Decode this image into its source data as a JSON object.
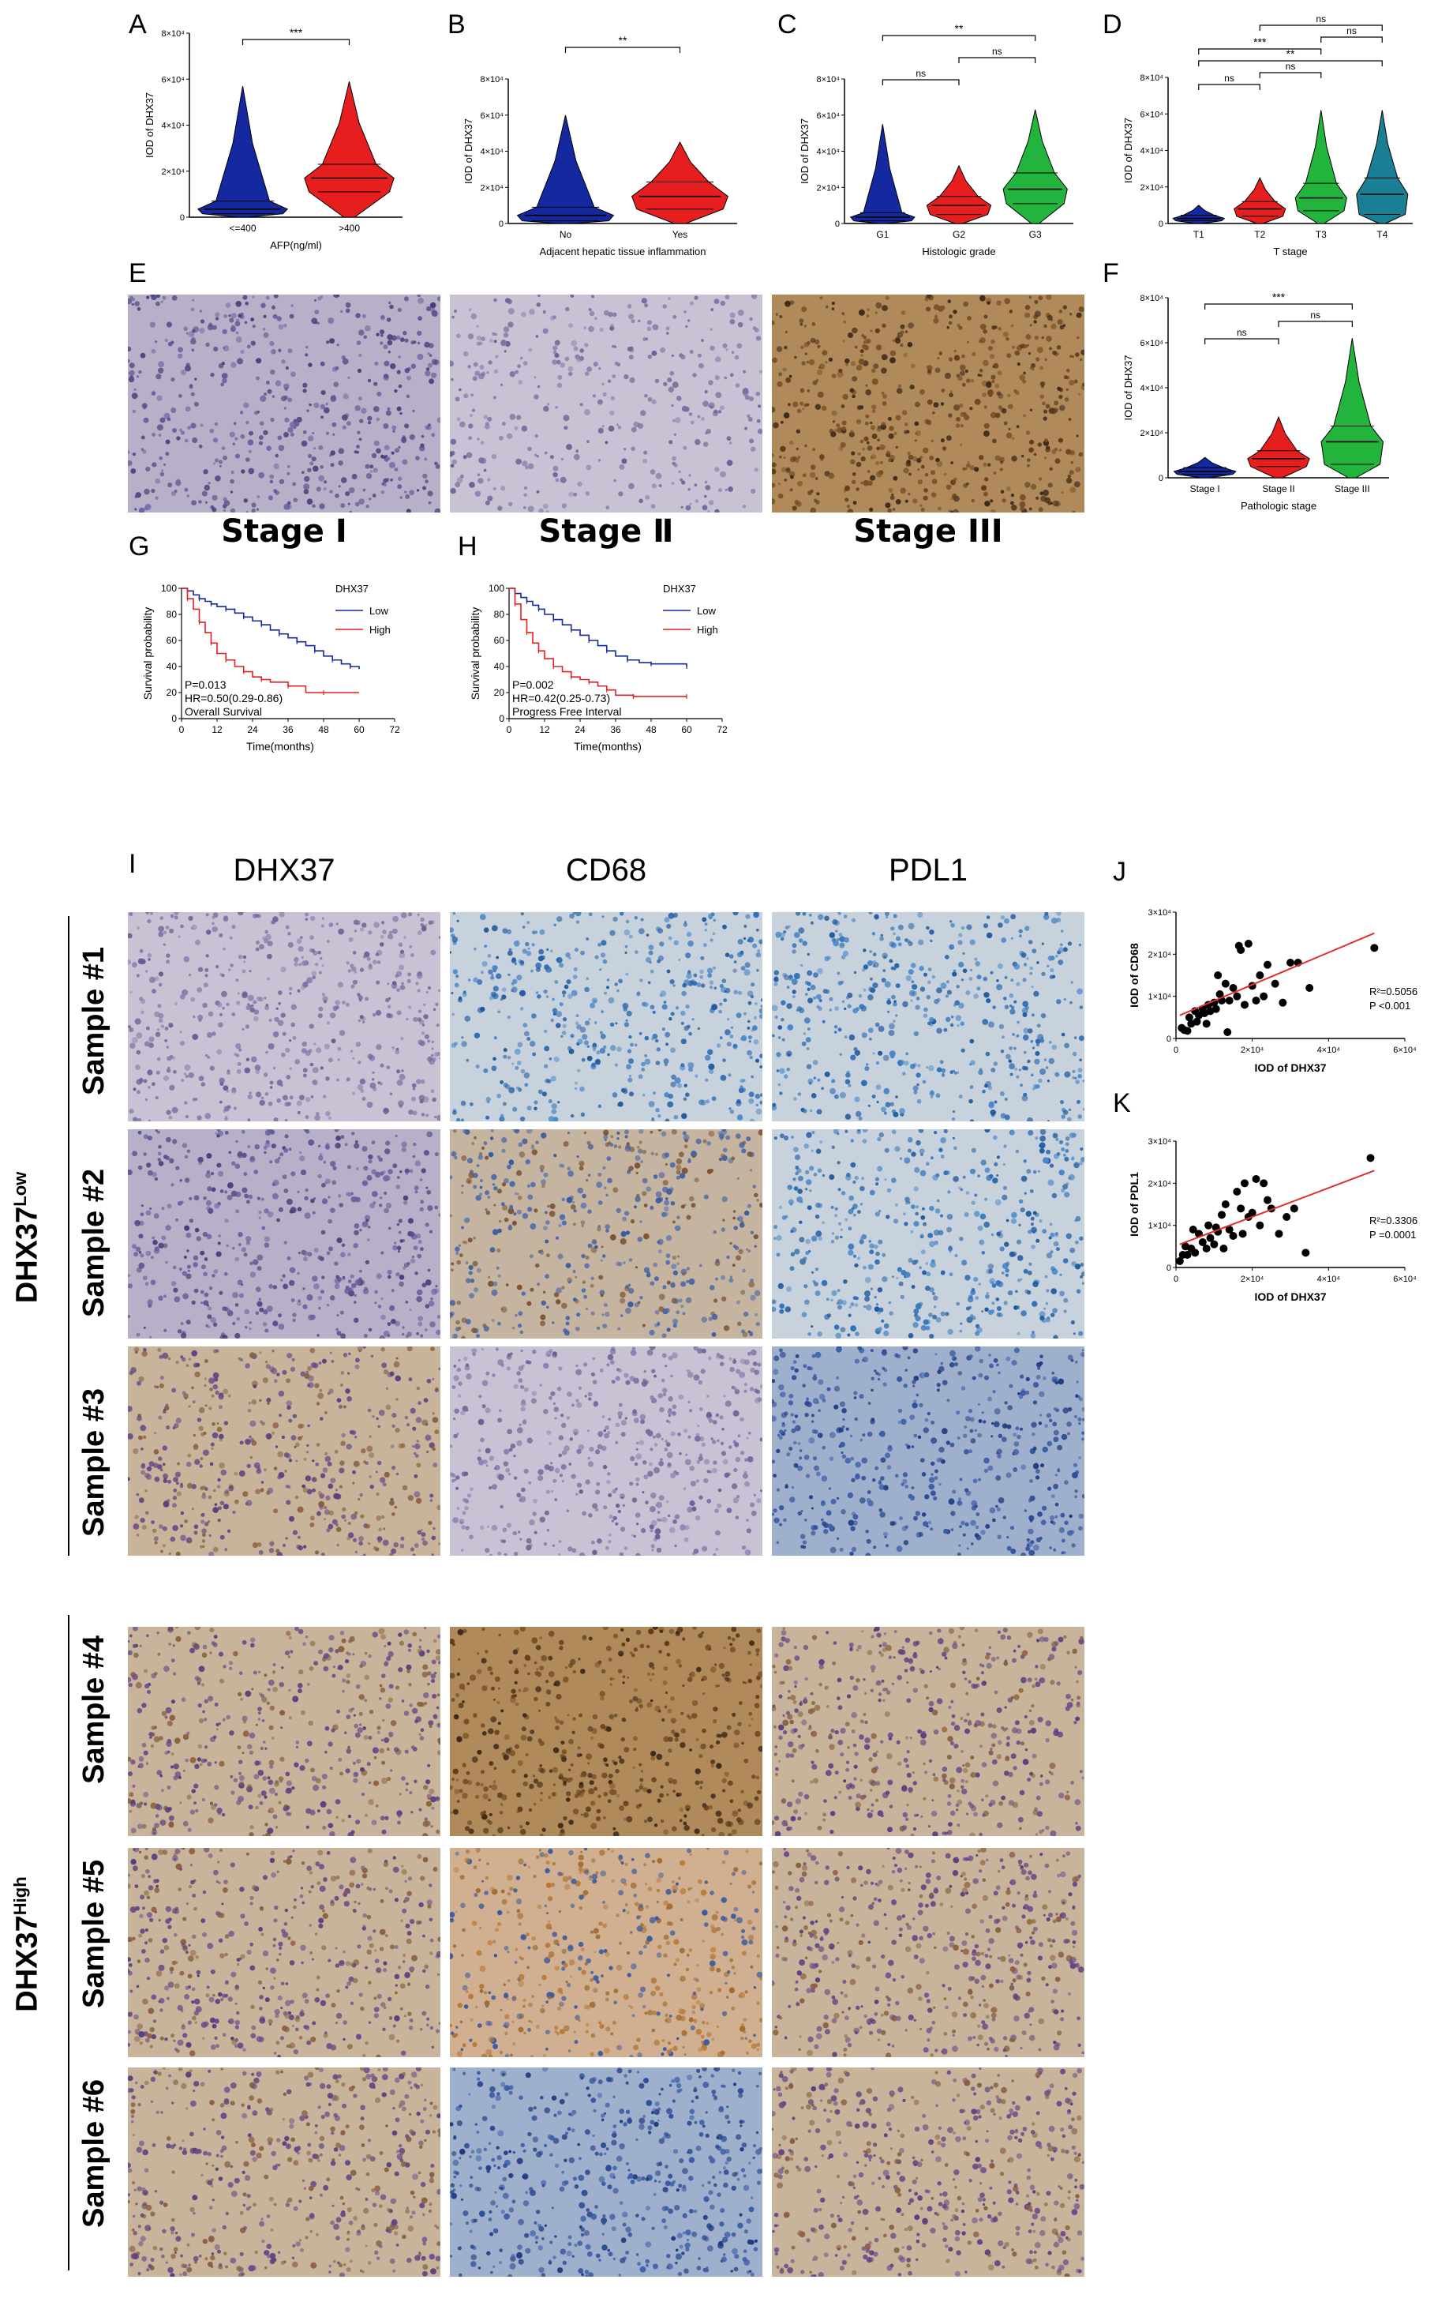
{
  "panels": {
    "A": "A",
    "B": "B",
    "C": "C",
    "D": "D",
    "E": "E",
    "F": "F",
    "G": "G",
    "H": "H",
    "I": "I",
    "J": "J",
    "K": "K"
  },
  "stage_labels": [
    "Stage Ⅰ",
    "Stage Ⅱ",
    "Stage III"
  ],
  "ihc_columns": [
    "DHX37",
    "CD68",
    "PDL1"
  ],
  "samples": [
    "Sample #1",
    "Sample #2",
    "Sample #3",
    "Sample #4",
    "Sample #5",
    "Sample #6"
  ],
  "group_low": {
    "base": "DHX37",
    "sup": "Low"
  },
  "group_high": {
    "base": "DHX37",
    "sup": "High"
  },
  "colors": {
    "blue": "#1428a0",
    "red": "#e61e1e",
    "green": "#22b43c",
    "teal": "#1a7f95",
    "line_red": "#e03030"
  },
  "chart_data": [
    {
      "id": "A",
      "type": "violin",
      "ylabel": "IOD of DHX37",
      "xlabel": "AFP(ng/ml)",
      "yticks": [
        "0",
        "2×10⁴",
        "4×10⁴",
        "6×10⁴",
        "8×10⁴"
      ],
      "ylim": [
        0,
        80000
      ],
      "categories": [
        "<=400",
        ">400"
      ],
      "groups": [
        {
          "name": "<=400",
          "color": "#1428a0",
          "min": 0,
          "q1": 1500,
          "median": 3500,
          "q3": 7000,
          "max": 57000
        },
        {
          "name": ">400",
          "color": "#e61e1e",
          "min": 0,
          "q1": 11000,
          "median": 17000,
          "q3": 23000,
          "max": 59000
        }
      ],
      "significance": [
        {
          "from": 0,
          "to": 1,
          "label": "***"
        }
      ]
    },
    {
      "id": "B",
      "type": "violin",
      "ylabel": "IOD of DHX37",
      "xlabel": "Adjacent hepatic tissue inflammation",
      "yticks": [
        "0",
        "2×10⁴",
        "4×10⁴",
        "6×10⁴",
        "8×10⁴"
      ],
      "ylim": [
        0,
        80000
      ],
      "categories": [
        "No",
        "Yes"
      ],
      "groups": [
        {
          "name": "No",
          "color": "#1428a0",
          "min": 0,
          "q1": 1500,
          "median": 4500,
          "q3": 9000,
          "max": 60000
        },
        {
          "name": "Yes",
          "color": "#e61e1e",
          "min": 0,
          "q1": 8000,
          "median": 15000,
          "q3": 23000,
          "max": 45000
        }
      ],
      "significance": [
        {
          "from": 0,
          "to": 1,
          "label": "**"
        }
      ]
    },
    {
      "id": "C",
      "type": "violin",
      "ylabel": "IOD of DHX37",
      "xlabel": "Histologic grade",
      "yticks": [
        "0",
        "2×10⁴",
        "4×10⁴",
        "6×10⁴",
        "8×10⁴"
      ],
      "ylim": [
        0,
        80000
      ],
      "categories": [
        "G1",
        "G2",
        "G3"
      ],
      "groups": [
        {
          "name": "G1",
          "color": "#1428a0",
          "min": 0,
          "q1": 1500,
          "median": 3500,
          "q3": 6000,
          "max": 55000
        },
        {
          "name": "G2",
          "color": "#e61e1e",
          "min": 0,
          "q1": 5000,
          "median": 10000,
          "q3": 15000,
          "max": 32000
        },
        {
          "name": "G3",
          "color": "#22b43c",
          "min": 0,
          "q1": 11000,
          "median": 19000,
          "q3": 28000,
          "max": 63000
        }
      ],
      "significance": [
        {
          "from": 0,
          "to": 1,
          "label": "ns"
        },
        {
          "from": 1,
          "to": 2,
          "label": "ns"
        },
        {
          "from": 0,
          "to": 2,
          "label": "**"
        }
      ]
    },
    {
      "id": "D",
      "type": "violin",
      "ylabel": "IOD of DHX37",
      "xlabel": "T stage",
      "yticks": [
        "0",
        "2×10⁴",
        "4×10⁴",
        "6×10⁴",
        "8×10⁴"
      ],
      "ylim": [
        0,
        80000
      ],
      "categories": [
        "T1",
        "T2",
        "T3",
        "T4"
      ],
      "groups": [
        {
          "name": "T1",
          "color": "#1428a0",
          "min": 0,
          "q1": 1500,
          "median": 2800,
          "q3": 4500,
          "max": 10000
        },
        {
          "name": "T2",
          "color": "#e61e1e",
          "min": 0,
          "q1": 4000,
          "median": 8000,
          "q3": 12000,
          "max": 25000
        },
        {
          "name": "T3",
          "color": "#22b43c",
          "min": 0,
          "q1": 7000,
          "median": 14000,
          "q3": 22000,
          "max": 62000
        },
        {
          "name": "T4",
          "color": "#1a7f95",
          "min": 0,
          "q1": 5000,
          "median": 16000,
          "q3": 25000,
          "max": 62000
        }
      ],
      "significance": [
        {
          "from": 0,
          "to": 1,
          "label": "ns"
        },
        {
          "from": 1,
          "to": 2,
          "label": "ns"
        },
        {
          "from": 0,
          "to": 3,
          "label": "**"
        },
        {
          "from": 0,
          "to": 2,
          "label": "***"
        },
        {
          "from": 2,
          "to": 3,
          "label": "ns"
        },
        {
          "from": 1,
          "to": 3,
          "label": "ns"
        }
      ]
    },
    {
      "id": "F",
      "type": "violin",
      "ylabel": "IOD of DHX37",
      "xlabel": "Pathologic stage",
      "yticks": [
        "0",
        "2×10⁴",
        "4×10⁴",
        "6×10⁴",
        "8×10⁴"
      ],
      "ylim": [
        0,
        80000
      ],
      "categories": [
        "Stage I",
        "Stage II",
        "Stage III"
      ],
      "groups": [
        {
          "name": "Stage I",
          "color": "#1428a0",
          "min": 0,
          "q1": 1500,
          "median": 2800,
          "q3": 4500,
          "max": 9000
        },
        {
          "name": "Stage II",
          "color": "#e61e1e",
          "min": 0,
          "q1": 5000,
          "median": 8500,
          "q3": 12000,
          "max": 27000
        },
        {
          "name": "Stage III",
          "color": "#22b43c",
          "min": 0,
          "q1": 6000,
          "median": 16000,
          "q3": 23000,
          "max": 62000
        }
      ],
      "significance": [
        {
          "from": 0,
          "to": 1,
          "label": "ns"
        },
        {
          "from": 1,
          "to": 2,
          "label": "ns"
        },
        {
          "from": 0,
          "to": 2,
          "label": "***"
        }
      ]
    },
    {
      "id": "G",
      "type": "line",
      "ylabel": "Survival probability",
      "xlabel": "Time(months)",
      "xticks": [
        0,
        12,
        24,
        36,
        48,
        60,
        72
      ],
      "yticks": [
        0,
        20,
        40,
        60,
        80,
        100
      ],
      "xlim": [
        0,
        72
      ],
      "ylim": [
        0,
        100
      ],
      "legend_title": "DHX37",
      "series": [
        {
          "name": "Low",
          "color": "#1428a0",
          "x": [
            0,
            2,
            4,
            6,
            8,
            10,
            12,
            15,
            18,
            21,
            24,
            27,
            30,
            33,
            36,
            39,
            42,
            45,
            48,
            51,
            54,
            57,
            60
          ],
          "y": [
            100,
            98,
            95,
            92,
            90,
            88,
            86,
            84,
            81,
            78,
            75,
            72,
            68,
            65,
            62,
            59,
            56,
            52,
            48,
            45,
            42,
            40,
            38
          ]
        },
        {
          "name": "High",
          "color": "#e61e1e",
          "x": [
            0,
            2,
            4,
            6,
            8,
            10,
            12,
            15,
            18,
            21,
            24,
            27,
            30,
            36,
            42,
            48,
            60
          ],
          "y": [
            100,
            92,
            84,
            74,
            66,
            58,
            50,
            45,
            40,
            36,
            32,
            30,
            28,
            25,
            20,
            20,
            20
          ]
        }
      ],
      "annotations": [
        "P=0.013",
        "HR=0.50(0.29-0.86)",
        "Overall Survival"
      ]
    },
    {
      "id": "H",
      "type": "line",
      "ylabel": "Survival probability",
      "xlabel": "Time(months)",
      "xticks": [
        0,
        12,
        24,
        36,
        48,
        60,
        72
      ],
      "yticks": [
        0,
        20,
        40,
        60,
        80,
        100
      ],
      "xlim": [
        0,
        72
      ],
      "ylim": [
        0,
        100
      ],
      "legend_title": "DHX37",
      "series": [
        {
          "name": "Low",
          "color": "#1428a0",
          "x": [
            0,
            2,
            4,
            6,
            8,
            10,
            12,
            15,
            18,
            21,
            24,
            27,
            30,
            33,
            36,
            40,
            44,
            48,
            54,
            60
          ],
          "y": [
            100,
            96,
            93,
            90,
            87,
            84,
            80,
            76,
            72,
            68,
            64,
            60,
            56,
            52,
            48,
            45,
            43,
            42,
            42,
            40
          ]
        },
        {
          "name": "High",
          "color": "#e61e1e",
          "x": [
            0,
            2,
            4,
            6,
            8,
            10,
            12,
            15,
            18,
            21,
            24,
            27,
            30,
            33,
            36,
            42,
            48,
            60
          ],
          "y": [
            100,
            88,
            76,
            66,
            58,
            52,
            46,
            40,
            36,
            32,
            30,
            28,
            25,
            22,
            18,
            17,
            17,
            17
          ]
        }
      ],
      "annotations": [
        "P=0.002",
        "HR=0.42(0.25-0.73)",
        "Progress Free Interval"
      ]
    },
    {
      "id": "J",
      "type": "scatter",
      "ylabel": "IOD of CD68",
      "xlabel": "IOD of DHX37",
      "xticks": [
        "0",
        "2×10⁴",
        "4×10⁴",
        "6×10⁴"
      ],
      "yticks": [
        "0",
        "1×10⁴",
        "2×10⁴",
        "3×10⁴"
      ],
      "xlim": [
        0,
        60000
      ],
      "ylim": [
        0,
        30000
      ],
      "x": [
        1500,
        2200,
        3000,
        3500,
        4000,
        5000,
        5500,
        6000,
        7000,
        7500,
        8000,
        8500,
        9000,
        10000,
        10500,
        11000,
        11500,
        12000,
        13000,
        13500,
        14000,
        15000,
        16000,
        16500,
        17000,
        18000,
        19000,
        20000,
        21000,
        22000,
        23000,
        24000,
        26000,
        28000,
        30000,
        32000,
        35000,
        52000
      ],
      "y": [
        2500,
        2000,
        1800,
        5000,
        3500,
        6500,
        4000,
        5500,
        7000,
        6000,
        3500,
        8000,
        6500,
        8500,
        7000,
        15000,
        10500,
        9000,
        13000,
        1500,
        9000,
        12000,
        10000,
        22000,
        21000,
        8000,
        22500,
        12500,
        9000,
        15000,
        10000,
        17500,
        13000,
        8500,
        18000,
        18000,
        12000,
        21500
      ],
      "fit": {
        "x": [
          1000,
          52000
        ],
        "y": [
          5500,
          25000
        ]
      },
      "annotations": [
        "R²=0.5056",
        "P <0.001"
      ]
    },
    {
      "id": "K",
      "type": "scatter",
      "ylabel": "IOD of PDL1",
      "xlabel": "IOD of DHX37",
      "xticks": [
        "0",
        "2×10⁴",
        "4×10⁴",
        "6×10⁴"
      ],
      "yticks": [
        "0",
        "1×10⁴",
        "2×10⁴",
        "3×10⁴"
      ],
      "xlim": [
        0,
        60000
      ],
      "ylim": [
        0,
        30000
      ],
      "x": [
        1000,
        1800,
        2500,
        3000,
        4000,
        4500,
        5000,
        6000,
        7000,
        8000,
        8500,
        9000,
        10000,
        10500,
        11000,
        12000,
        12500,
        13000,
        14000,
        15000,
        16000,
        17000,
        17500,
        18000,
        19000,
        20000,
        21000,
        22000,
        23000,
        24000,
        25000,
        27000,
        29000,
        31000,
        34000,
        51000
      ],
      "y": [
        1500,
        3000,
        5000,
        3000,
        4500,
        9000,
        3500,
        8000,
        6000,
        4500,
        10000,
        7000,
        5500,
        9500,
        8500,
        12500,
        4500,
        15000,
        9000,
        7500,
        18000,
        14000,
        8000,
        20000,
        12000,
        13000,
        21000,
        10000,
        20000,
        16000,
        14000,
        8000,
        12000,
        14000,
        3500,
        26000
      ],
      "fit": {
        "x": [
          1000,
          52000
        ],
        "y": [
          5500,
          23000
        ]
      },
      "annotations": [
        "R²=0.3306",
        "P =0.0001"
      ]
    }
  ]
}
